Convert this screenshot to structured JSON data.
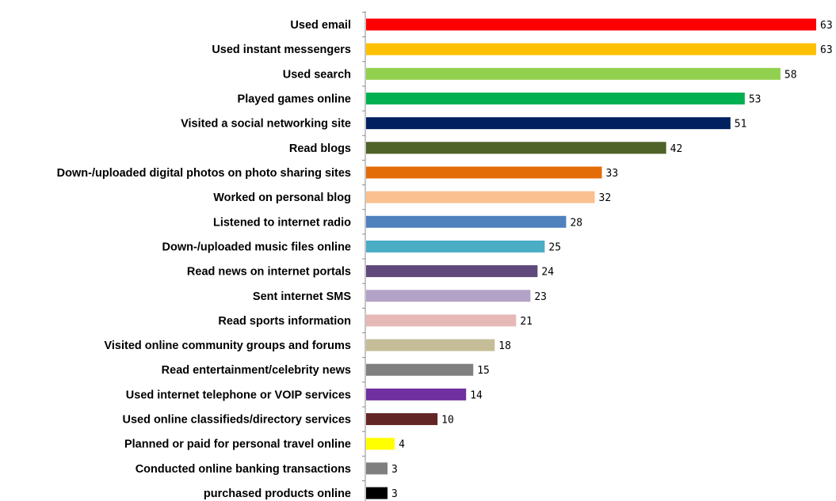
{
  "chart_data": {
    "type": "bar",
    "orientation": "horizontal",
    "categories": [
      "Used email",
      "Used instant messengers",
      "Used search",
      "Played games online",
      "Visited a social networking site",
      "Read blogs",
      "Down-/uploaded digital photos on photo sharing sites",
      "Worked on personal blog",
      "Listened to internet radio",
      "Down-/uploaded music files online",
      "Read news on internet portals",
      "Sent internet SMS",
      "Read sports information",
      "Visited online community groups and forums",
      "Read entertainment/celebrity news",
      "Used internet telephone or VOIP services",
      "Used online classifieds/directory services",
      "Planned or paid for personal travel online",
      "Conducted online banking transactions",
      "purchased products online"
    ],
    "values": [
      63,
      63,
      58,
      53,
      51,
      42,
      33,
      32,
      28,
      25,
      24,
      23,
      21,
      18,
      15,
      14,
      10,
      4,
      3,
      3
    ],
    "colors": [
      "#ff0000",
      "#ffc000",
      "#92d050",
      "#00b050",
      "#002060",
      "#4f6228",
      "#e36c09",
      "#fac090",
      "#4f81bd",
      "#4bacc6",
      "#604a7b",
      "#b3a2c7",
      "#e6b9b8",
      "#c4bd97",
      "#808080",
      "#7030a0",
      "#632523",
      "#ffff00",
      "#7f7f7f",
      "#000000"
    ],
    "data_labels": true,
    "xlim": [
      0,
      63
    ],
    "grid": false,
    "legend": "none"
  }
}
